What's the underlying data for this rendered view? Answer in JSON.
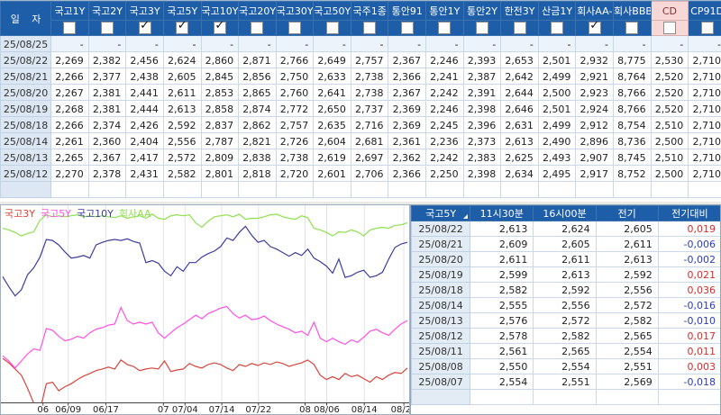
{
  "top_table": {
    "date_header": "일 자",
    "columns": [
      {
        "label": "국고1Y",
        "checked": false,
        "highlight": false
      },
      {
        "label": "국고2Y",
        "checked": false,
        "highlight": false
      },
      {
        "label": "국고3Y",
        "checked": true,
        "highlight": false
      },
      {
        "label": "국고5Y",
        "checked": true,
        "highlight": false
      },
      {
        "label": "국고10Y",
        "checked": true,
        "highlight": false
      },
      {
        "label": "국고20Y",
        "checked": false,
        "highlight": false
      },
      {
        "label": "국고30Y",
        "checked": false,
        "highlight": false
      },
      {
        "label": "국고50Y",
        "checked": false,
        "highlight": false
      },
      {
        "label": "국주1종",
        "checked": false,
        "highlight": false
      },
      {
        "label": "통안91",
        "checked": false,
        "highlight": false
      },
      {
        "label": "통안1Y",
        "checked": false,
        "highlight": false
      },
      {
        "label": "통안2Y",
        "checked": false,
        "highlight": false
      },
      {
        "label": "한전3Y",
        "checked": false,
        "highlight": false
      },
      {
        "label": "산금1Y",
        "checked": false,
        "highlight": false
      },
      {
        "label": "회사AA-",
        "checked": true,
        "highlight": false
      },
      {
        "label": "회사BBB-",
        "checked": false,
        "highlight": false
      },
      {
        "label": "CD",
        "checked": false,
        "highlight": true
      },
      {
        "label": "CP91D",
        "checked": false,
        "highlight": false
      }
    ],
    "rows": [
      {
        "date": "25/08/25",
        "values": [
          "-",
          "-",
          "-",
          "-",
          "-",
          "-",
          "-",
          "-",
          "-",
          "-",
          "-",
          "-",
          "-",
          "-",
          "-",
          "-",
          "-",
          "-"
        ]
      },
      {
        "date": "25/08/22",
        "values": [
          "2,269",
          "2,382",
          "2,456",
          "2,624",
          "2,860",
          "2,871",
          "2,766",
          "2,649",
          "2,757",
          "2,367",
          "2,246",
          "2,393",
          "2,653",
          "2,501",
          "2,932",
          "8,775",
          "2,530",
          "2,710"
        ]
      },
      {
        "date": "25/08/21",
        "values": [
          "2,266",
          "2,377",
          "2,438",
          "2,605",
          "2,845",
          "2,856",
          "2,750",
          "2,633",
          "2,738",
          "2,366",
          "2,241",
          "2,387",
          "2,642",
          "2,499",
          "2,921",
          "8,764",
          "2,520",
          "2,710"
        ]
      },
      {
        "date": "25/08/20",
        "values": [
          "2,267",
          "2,381",
          "2,441",
          "2,611",
          "2,853",
          "2,865",
          "2,760",
          "2,641",
          "2,738",
          "2,367",
          "2,242",
          "2,391",
          "2,644",
          "2,500",
          "2,923",
          "8,766",
          "2,520",
          "2,710"
        ]
      },
      {
        "date": "25/08/19",
        "values": [
          "2,268",
          "2,381",
          "2,444",
          "2,613",
          "2,858",
          "2,874",
          "2,772",
          "2,650",
          "2,737",
          "2,369",
          "2,246",
          "2,398",
          "2,646",
          "2,501",
          "2,924",
          "8,766",
          "2,520",
          "2,710"
        ]
      },
      {
        "date": "25/08/18",
        "values": [
          "2,266",
          "2,374",
          "2,426",
          "2,592",
          "2,837",
          "2,862",
          "2,757",
          "2,635",
          "2,716",
          "2,369",
          "2,245",
          "2,396",
          "2,631",
          "2,499",
          "2,912",
          "8,754",
          "2,510",
          "2,710"
        ]
      },
      {
        "date": "25/08/14",
        "values": [
          "2,261",
          "2,360",
          "2,404",
          "2,556",
          "2,787",
          "2,821",
          "2,726",
          "2,604",
          "2,681",
          "2,361",
          "2,236",
          "2,373",
          "2,613",
          "2,490",
          "2,896",
          "8,736",
          "2,500",
          "2,710"
        ]
      },
      {
        "date": "25/08/13",
        "values": [
          "2,265",
          "2,367",
          "2,417",
          "2,572",
          "2,809",
          "2,838",
          "2,738",
          "2,619",
          "2,697",
          "2,362",
          "2,242",
          "2,383",
          "2,625",
          "2,493",
          "2,907",
          "8,745",
          "2,510",
          "2,710"
        ]
      },
      {
        "date": "25/08/12",
        "values": [
          "2,270",
          "2,378",
          "2,431",
          "2,582",
          "2,801",
          "2,818",
          "2,720",
          "2,601",
          "2,706",
          "2,366",
          "2,250",
          "2,398",
          "2,634",
          "2,495",
          "2,917",
          "8,752",
          "2,500",
          "2,710"
        ]
      }
    ]
  },
  "chart_data": {
    "type": "line",
    "title": "",
    "xlabel": "",
    "ylabel": "",
    "y_domain": [
      2.345,
      2.96
    ],
    "grid": "vertical-only",
    "legend_position": "top-left-overlay",
    "x_ticks": [
      {
        "label": "06",
        "f": 0.103
      },
      {
        "label": "06/09",
        "f": 0.165
      },
      {
        "label": "06/17",
        "f": 0.257
      },
      {
        "label": "07",
        "f": 0.398
      },
      {
        "label": "07/04",
        "f": 0.451
      },
      {
        "label": "07/14",
        "f": 0.541
      },
      {
        "label": "07/22",
        "f": 0.631
      },
      {
        "label": "08",
        "f": 0.745
      },
      {
        "label": "08/06",
        "f": 0.798
      },
      {
        "label": "08/14",
        "f": 0.89
      },
      {
        "label": "08/22",
        "f": 0.987
      }
    ],
    "series": [
      {
        "name": "국고3Y",
        "color": "#D8453C",
        "values": [
          2.485,
          2.471,
          2.452,
          2.433,
          2.392,
          2.345,
          2.323,
          2.406,
          2.411,
          2.384,
          2.397,
          2.406,
          2.419,
          2.43,
          2.438,
          2.447,
          2.452,
          2.458,
          2.452,
          2.48,
          2.466,
          2.46,
          2.447,
          2.452,
          2.455,
          2.452,
          2.477,
          2.444,
          2.449,
          2.452,
          2.469,
          2.46,
          2.455,
          2.466,
          2.471,
          2.466,
          2.455,
          2.447,
          2.466,
          2.46,
          2.469,
          2.463,
          2.471,
          2.466,
          2.474,
          2.469,
          2.46,
          2.466,
          2.471,
          2.48,
          2.466,
          2.433,
          2.419,
          2.428,
          2.419,
          2.438,
          2.428,
          2.433,
          2.422,
          2.411,
          2.428,
          2.419,
          2.433,
          2.441,
          2.438,
          2.455
        ]
      },
      {
        "name": "국고5Y",
        "color": "#FF50E6",
        "values": [
          2.493,
          2.477,
          2.455,
          2.477,
          2.499,
          2.515,
          2.51,
          2.578,
          2.573,
          2.554,
          2.54,
          2.545,
          2.554,
          2.548,
          2.565,
          2.576,
          2.581,
          2.589,
          2.592,
          2.644,
          2.603,
          2.592,
          2.598,
          2.592,
          2.598,
          2.565,
          2.548,
          2.565,
          2.581,
          2.592,
          2.606,
          2.62,
          2.609,
          2.625,
          2.633,
          2.642,
          2.647,
          2.625,
          2.611,
          2.62,
          2.606,
          2.609,
          2.617,
          2.603,
          2.592,
          2.584,
          2.576,
          2.565,
          2.57,
          2.557,
          2.598,
          2.548,
          2.537,
          2.548,
          2.537,
          2.529,
          2.543,
          2.535,
          2.551,
          2.57,
          2.576,
          2.565,
          2.557,
          2.576,
          2.592,
          2.603
        ]
      },
      {
        "name": "국고10Y",
        "color": "#3C3CA0",
        "values": [
          2.74,
          2.708,
          2.68,
          2.699,
          2.746,
          2.768,
          2.801,
          2.856,
          2.853,
          2.839,
          2.817,
          2.798,
          2.801,
          2.806,
          2.798,
          2.839,
          2.847,
          2.853,
          2.856,
          2.853,
          2.858,
          2.85,
          2.845,
          2.784,
          2.79,
          2.782,
          2.757,
          2.743,
          2.771,
          2.757,
          2.784,
          2.784,
          2.801,
          2.812,
          2.82,
          2.834,
          2.861,
          2.853,
          2.878,
          2.897,
          2.869,
          2.847,
          2.853,
          2.834,
          2.826,
          2.815,
          2.804,
          2.815,
          2.806,
          2.826,
          2.798,
          2.787,
          2.773,
          2.751,
          2.795,
          2.738,
          2.743,
          2.754,
          2.76,
          2.738,
          2.743,
          2.754,
          2.795,
          2.831,
          2.842,
          2.847
        ]
      },
      {
        "name": "회사AA-",
        "color": "#8EE04E",
        "values": [
          2.891,
          2.886,
          2.878,
          2.867,
          2.875,
          2.88,
          2.916,
          2.933,
          2.927,
          2.93,
          2.927,
          2.93,
          2.933,
          2.927,
          2.93,
          2.927,
          2.93,
          2.927,
          2.924,
          2.93,
          2.922,
          2.927,
          2.93,
          2.922,
          2.935,
          2.922,
          2.919,
          2.93,
          2.933,
          2.93,
          2.933,
          2.908,
          2.894,
          2.913,
          2.927,
          2.93,
          2.933,
          2.927,
          2.935,
          2.919,
          2.922,
          2.922,
          2.927,
          2.933,
          2.935,
          2.927,
          2.922,
          2.919,
          2.93,
          2.924,
          2.891,
          2.886,
          2.878,
          2.867,
          2.88,
          2.878,
          2.886,
          2.88,
          2.867,
          2.886,
          2.891,
          2.894,
          2.891,
          2.9,
          2.902,
          2.908
        ]
      }
    ]
  },
  "right_table": {
    "headers": [
      "국고5Y",
      "11시30분",
      "16시00분",
      "전기",
      "전기대비"
    ],
    "rows": [
      {
        "date": "25/08/22",
        "t1130": "2,613",
        "t1600": "2,624",
        "prev": "2,605",
        "chg": "0,019"
      },
      {
        "date": "25/08/21",
        "t1130": "2,609",
        "t1600": "2,605",
        "prev": "2,611",
        "chg": "-0,006"
      },
      {
        "date": "25/08/20",
        "t1130": "2,611",
        "t1600": "2,611",
        "prev": "2,613",
        "chg": "-0,002"
      },
      {
        "date": "25/08/19",
        "t1130": "2,599",
        "t1600": "2,613",
        "prev": "2,592",
        "chg": "0,021"
      },
      {
        "date": "25/08/18",
        "t1130": "2,582",
        "t1600": "2,592",
        "prev": "2,556",
        "chg": "0,036"
      },
      {
        "date": "25/08/14",
        "t1130": "2,555",
        "t1600": "2,556",
        "prev": "2,572",
        "chg": "-0,016"
      },
      {
        "date": "25/08/13",
        "t1130": "2,576",
        "t1600": "2,572",
        "prev": "2,582",
        "chg": "-0,010"
      },
      {
        "date": "25/08/12",
        "t1130": "2,578",
        "t1600": "2,582",
        "prev": "2,565",
        "chg": "0,017"
      },
      {
        "date": "25/08/11",
        "t1130": "2,561",
        "t1600": "2,565",
        "prev": "2,554",
        "chg": "0,011"
      },
      {
        "date": "25/08/08",
        "t1130": "2,550",
        "t1600": "2,554",
        "prev": "2,551",
        "chg": "0,003"
      },
      {
        "date": "25/08/07",
        "t1130": "2,554",
        "t1600": "2,551",
        "prev": "2,569",
        "chg": "-0,018"
      }
    ]
  },
  "colors": {
    "header_blue": "#1E5EA9",
    "highlight_pink": "#F8D7D7",
    "date_cell_bg": "#DCE7F3",
    "grid_border": "#C9D9EA",
    "positive_change": "#E02A2A",
    "negative_change": "#2A3CC8"
  }
}
